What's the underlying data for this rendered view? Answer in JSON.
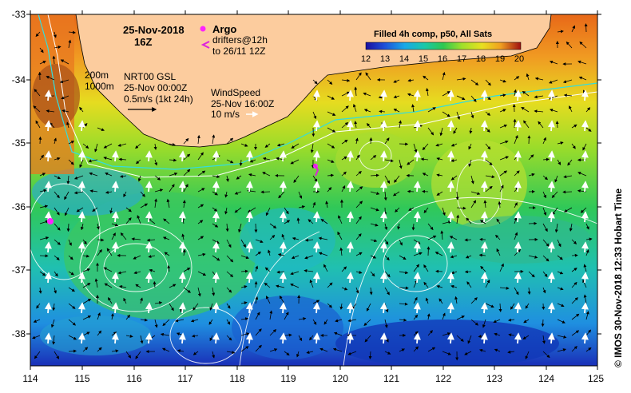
{
  "title": {
    "date": "25-Nov-2018",
    "hour": "16Z"
  },
  "legend": {
    "argo_label": "Argo",
    "drifters_label": "drifters@12h",
    "drifters_range": "to 26/11 12Z",
    "isobath_200": "200m",
    "isobath_1000": "1000m",
    "current_title": "NRT00 GSL",
    "current_date": "25-Nov 00:00Z",
    "current_scale": "0.5m/s (1kt 24h)",
    "wind_title": "WindSpeed",
    "wind_date": "25-Nov 16:00Z",
    "wind_scale": "10 m/s"
  },
  "colorbar": {
    "title": "Filled 4h comp, p50, All Sats",
    "ticks": [
      "12",
      "13",
      "14",
      "15",
      "16",
      "17",
      "18",
      "19",
      "20"
    ],
    "colors": [
      "#1a0fa0",
      "#1f4fd8",
      "#18a8e8",
      "#19c8a8",
      "#2ec850",
      "#9fe02a",
      "#e8e020",
      "#f0a020",
      "#e85a10",
      "#a01010"
    ]
  },
  "axes": {
    "lon_ticks": [
      "114",
      "115",
      "116",
      "117",
      "118",
      "119",
      "120",
      "121",
      "122",
      "123",
      "124",
      "125"
    ],
    "lat_ticks": [
      "-33",
      "-34",
      "-35",
      "-36",
      "-37",
      "-38"
    ]
  },
  "credit": "© IMOS 30-Nov-2018 12:33 Hobart Time",
  "colors": {
    "land": "#fccc9e",
    "argo": "#ff22ff",
    "drifter": "#dd22dd",
    "isobath_200": "#33dddd",
    "isobath_1000": "#ffffff"
  }
}
